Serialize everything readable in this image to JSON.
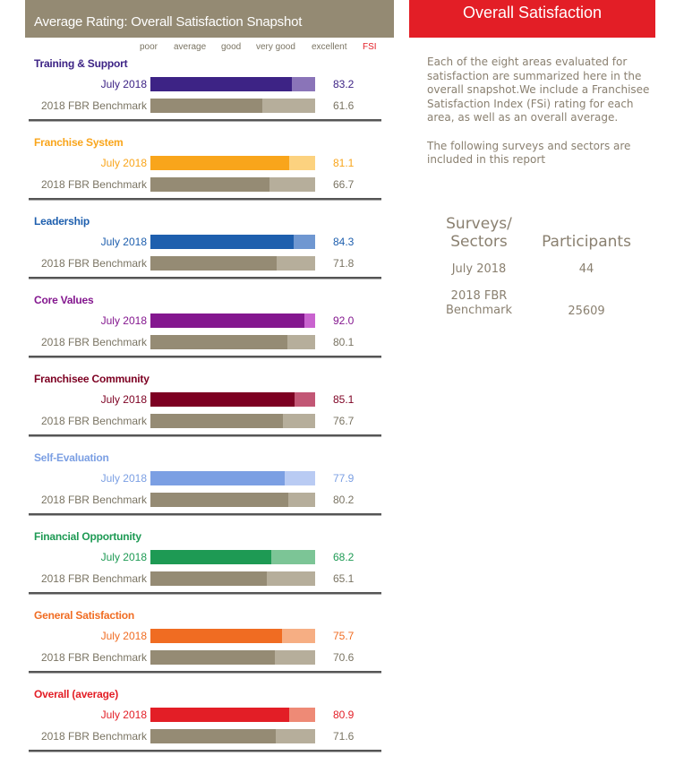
{
  "chart_data": {
    "type": "bar",
    "title": "Average Rating: Overall Satisfaction Snapshot",
    "scale_labels": [
      "poor",
      "average",
      "good",
      "very good",
      "excellent"
    ],
    "value_header": "FSI",
    "xlim": [
      -20,
      100
    ],
    "sections": [
      {
        "title": "Training & Support",
        "color": "#3d2385",
        "light": "#8a74b8",
        "rows": [
          {
            "label": "July 2018",
            "value": 83.2
          },
          {
            "label": "2018 FBR Benchmark",
            "value": 61.6
          }
        ]
      },
      {
        "title": "Franchise System",
        "color": "#f9a51b",
        "light": "#fcd27f",
        "rows": [
          {
            "label": "July 2018",
            "value": 81.1
          },
          {
            "label": "2018 FBR Benchmark",
            "value": 66.7
          }
        ]
      },
      {
        "title": "Leadership",
        "color": "#1e5fae",
        "light": "#6f97d1",
        "rows": [
          {
            "label": "July 2018",
            "value": 84.3
          },
          {
            "label": "2018 FBR Benchmark",
            "value": 71.8
          }
        ]
      },
      {
        "title": "Core Values",
        "color": "#84178f",
        "light": "#c963cf",
        "rows": [
          {
            "label": "July 2018",
            "value": 92.0
          },
          {
            "label": "2018 FBR Benchmark",
            "value": 80.1
          }
        ]
      },
      {
        "title": "Franchisee Community",
        "color": "#7d0022",
        "light": "#c25775",
        "rows": [
          {
            "label": "July 2018",
            "value": 85.1
          },
          {
            "label": "2018 FBR Benchmark",
            "value": 76.7
          }
        ]
      },
      {
        "title": "Self-Evaluation",
        "color": "#7b9fe3",
        "light": "#b9cbf3",
        "rows": [
          {
            "label": "July 2018",
            "value": 77.9
          },
          {
            "label": "2018 FBR Benchmark",
            "value": 80.2
          }
        ]
      },
      {
        "title": "Financial Opportunity",
        "color": "#1e9a54",
        "light": "#7cc596",
        "rows": [
          {
            "label": "July 2018",
            "value": 68.2
          },
          {
            "label": "2018 FBR Benchmark",
            "value": 65.1
          }
        ]
      },
      {
        "title": "General Satisfaction",
        "color": "#f06c22",
        "light": "#f6ae83",
        "rows": [
          {
            "label": "July 2018",
            "value": 75.7
          },
          {
            "label": "2018 FBR Benchmark",
            "value": 70.6
          }
        ]
      },
      {
        "title": "Overall (average)",
        "color": "#e31e26",
        "light": "#ee8a76",
        "rows": [
          {
            "label": "July 2018",
            "value": 80.9
          },
          {
            "label": "2018 FBR Benchmark",
            "value": 71.6
          }
        ]
      }
    ],
    "benchmark_color": "#958b74",
    "benchmark_light": "#b6ae9b"
  },
  "right": {
    "title": "Overall Satisfaction",
    "p1": "Each of the eight areas evaluated for satisfaction are summarized here in the overall snapshot.We include a Franchisee Satisfaction Index (FSi) rating for each area, as well as an overall average.",
    "p2": "The following surveys and sectors are included in this report",
    "col1": "Surveys/ Sectors",
    "col2": "Participants",
    "rows": [
      {
        "name": "July 2018",
        "count": "44"
      },
      {
        "name": "2018 FBR Benchmark",
        "count": "25609"
      }
    ]
  }
}
